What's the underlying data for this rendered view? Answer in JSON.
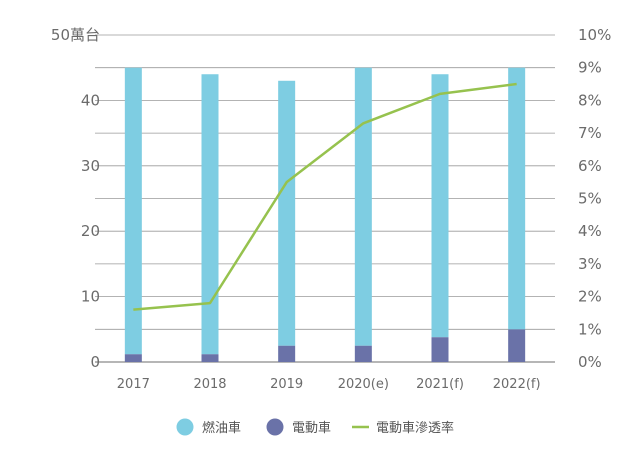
{
  "chart_data": {
    "type": "bar",
    "categories": [
      "2017",
      "2018",
      "2019",
      "2020(e)",
      "2021(f)",
      "2022(f)"
    ],
    "stacked": true,
    "series": [
      {
        "name": "燃油車",
        "type": "bar",
        "axis": "left",
        "color": "#7ecde2",
        "values": [
          43.8,
          42.8,
          40.5,
          42.5,
          40.2,
          40.0
        ]
      },
      {
        "name": "電動車",
        "type": "bar",
        "axis": "left",
        "color": "#6a72a8",
        "values": [
          1.2,
          1.2,
          2.5,
          2.5,
          3.8,
          5.0
        ]
      },
      {
        "name": "電動車滲透率",
        "type": "line",
        "axis": "right",
        "color": "#96c24e",
        "values": [
          1.6,
          1.8,
          5.5,
          7.3,
          8.2,
          8.5
        ]
      }
    ],
    "left_axis": {
      "ylim": [
        0,
        50
      ],
      "ticks": [
        "0",
        "10",
        "20",
        "30",
        "40",
        "50萬台"
      ]
    },
    "right_axis": {
      "ylim": [
        0,
        10
      ],
      "ticks": [
        "0%",
        "1%",
        "2%",
        "3%",
        "4%",
        "5%",
        "6%",
        "7%",
        "8%",
        "9%",
        "10%"
      ]
    },
    "grid": true,
    "legend_position": "bottom"
  }
}
